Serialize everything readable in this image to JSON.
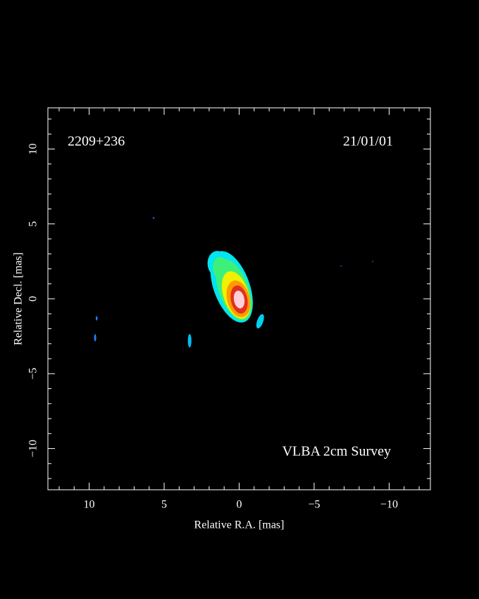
{
  "chart_data": {
    "type": "image",
    "annotations": [
      "2209+236",
      "21/01/01",
      "VLBA 2cm Survey"
    ],
    "xlabel": "Relative R.A. [mas]",
    "ylabel": "Relative Decl. [mas]",
    "xlim": [
      12.75,
      -12.75
    ],
    "ylim": [
      -12.75,
      12.75
    ],
    "xticks": [
      10,
      5,
      0,
      {
        "value": -5,
        "label": "−5"
      },
      {
        "value": -10,
        "label": "−10"
      }
    ],
    "yticks": [
      {
        "value": -10,
        "label": "−10"
      },
      {
        "value": -5,
        "label": "−5"
      },
      0,
      5,
      10
    ],
    "xminorticks": [
      12,
      11,
      9,
      8,
      7,
      6,
      4,
      3,
      2,
      1,
      -1,
      -2,
      -3,
      -4,
      -6,
      -7,
      -8,
      -9,
      -11,
      -12
    ],
    "yminorticks": [
      -12,
      -11,
      -9,
      -8,
      -7,
      -6,
      -4,
      -3,
      -2,
      -1,
      1,
      2,
      3,
      4,
      6,
      7,
      8,
      9,
      11,
      12
    ],
    "components": [
      {
        "x": 1.4,
        "y": 2.3,
        "rx": 0.7,
        "ry": 0.9,
        "angle": -10,
        "color": "#00e5f0"
      },
      {
        "x": 0.5,
        "y": 0.8,
        "rx": 1.2,
        "ry": 2.5,
        "angle": -20,
        "color": "#00e5f0"
      },
      {
        "x": 1.2,
        "y": 2.0,
        "rx": 0.55,
        "ry": 0.8,
        "angle": -10,
        "color": "#3cf07a"
      },
      {
        "x": 0.35,
        "y": 0.6,
        "rx": 1.0,
        "ry": 2.15,
        "angle": -20,
        "color": "#3cf07a"
      },
      {
        "x": 0.2,
        "y": 0.25,
        "rx": 0.85,
        "ry": 1.65,
        "angle": -18,
        "color": "#f0f000"
      },
      {
        "x": 0.05,
        "y": 0.0,
        "rx": 0.75,
        "ry": 1.25,
        "angle": -15,
        "color": "#ff9a00"
      },
      {
        "x": 0.0,
        "y": -0.05,
        "rx": 0.55,
        "ry": 0.95,
        "angle": -12,
        "color": "#e0301e"
      },
      {
        "x": 0.0,
        "y": -0.05,
        "rx": 0.35,
        "ry": 0.6,
        "angle": -10,
        "color": "#ffd0d8"
      },
      {
        "x": -1.4,
        "y": -1.5,
        "rx": 0.2,
        "ry": 0.5,
        "angle": 20,
        "color": "#00d0f0"
      },
      {
        "x": 3.3,
        "y": -2.8,
        "rx": 0.12,
        "ry": 0.45,
        "angle": 0,
        "color": "#00c0f0"
      },
      {
        "x": 9.6,
        "y": -2.6,
        "rx": 0.07,
        "ry": 0.25,
        "angle": 0,
        "color": "#2080ff"
      },
      {
        "x": 9.5,
        "y": -1.3,
        "rx": 0.06,
        "ry": 0.15,
        "angle": 0,
        "color": "#2080ff"
      },
      {
        "x": 5.7,
        "y": 5.4,
        "rx": 0.06,
        "ry": 0.06,
        "angle": 0,
        "color": "#3050ff"
      },
      {
        "x": -6.8,
        "y": 2.2,
        "rx": 0.04,
        "ry": 0.04,
        "angle": 0,
        "color": "#3050ff"
      },
      {
        "x": -8.9,
        "y": 2.5,
        "rx": 0.04,
        "ry": 0.04,
        "angle": 0,
        "color": "#3050ff"
      }
    ]
  }
}
